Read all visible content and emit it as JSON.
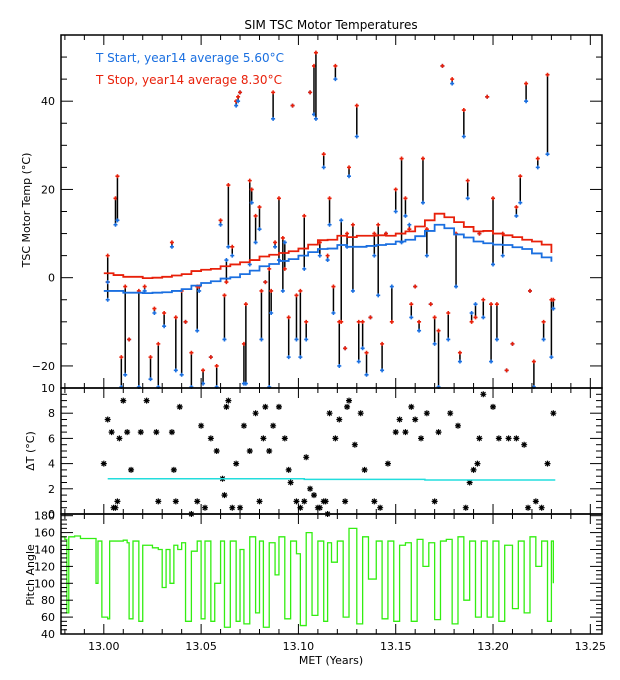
{
  "title": "SIM TSC Motor Temperatures",
  "colors": {
    "start": "#1a6fe0",
    "stop": "#e8200a",
    "span": "#000000",
    "dt_avg": "#22dddd",
    "pitch": "#33ee11",
    "axis": "#000000"
  },
  "chart_data": [
    {
      "type": "scatter",
      "title": "SIM TSC Motor Temperatures",
      "ylabel": "TSC Motor Temp (°C)",
      "xlim": [
        12.978,
        13.256
      ],
      "ylim": [
        -25,
        55
      ],
      "yticks": [
        -20,
        0,
        20,
        40
      ],
      "ytick_labels": [
        "−20",
        "0",
        "20",
        "40"
      ],
      "legend": {
        "placement": "top-left",
        "entries": [
          {
            "label": "T Start, year14 average  5.60°C",
            "series": "start"
          },
          {
            "label": "T Stop, year14 average  8.30°C",
            "series": "stop"
          }
        ]
      },
      "events": [
        [
          13.002,
          -5,
          -1
        ],
        [
          13.002,
          -1,
          5
        ],
        [
          13.006,
          12,
          18
        ],
        [
          13.007,
          13,
          23
        ],
        [
          13.009,
          -28,
          -18
        ],
        [
          13.011,
          -22,
          -2
        ],
        [
          13.013,
          -14,
          -14
        ],
        [
          13.018,
          -28,
          -3
        ],
        [
          13.021,
          -3,
          -2
        ],
        [
          13.024,
          -23,
          -18
        ],
        [
          13.026,
          -8,
          -7
        ],
        [
          13.028,
          -28,
          -15
        ],
        [
          13.031,
          -11,
          -8
        ],
        [
          13.035,
          7,
          8
        ],
        [
          13.037,
          -21,
          -9
        ],
        [
          13.04,
          -22,
          -3
        ],
        [
          13.042,
          -10,
          -10
        ],
        [
          13.045,
          -25,
          -17
        ],
        [
          13.048,
          -12,
          -2
        ],
        [
          13.049,
          -3,
          -2
        ],
        [
          13.051,
          -24,
          -21
        ],
        [
          13.055,
          -18,
          -18
        ],
        [
          13.058,
          -26,
          -20
        ],
        [
          13.06,
          12,
          13
        ],
        [
          13.062,
          -14,
          -4
        ],
        [
          13.063,
          4,
          -1
        ],
        [
          13.064,
          7,
          21
        ],
        [
          13.066,
          5,
          7
        ],
        [
          13.068,
          39,
          40
        ],
        [
          13.069,
          40,
          41
        ],
        [
          13.07,
          42,
          42
        ],
        [
          13.072,
          -24,
          -15
        ],
        [
          13.073,
          -24,
          -6
        ],
        [
          13.075,
          3,
          22
        ],
        [
          13.076,
          17,
          20
        ],
        [
          13.078,
          8,
          14
        ],
        [
          13.08,
          11,
          16
        ],
        [
          13.081,
          -14,
          -3
        ],
        [
          13.083,
          -1,
          -1
        ],
        [
          13.085,
          -25,
          2
        ],
        [
          13.086,
          -8,
          -3
        ],
        [
          13.087,
          36,
          42
        ],
        [
          13.088,
          7,
          8
        ],
        [
          13.09,
          4,
          18
        ],
        [
          13.092,
          -3,
          9
        ],
        [
          13.093,
          8,
          2
        ],
        [
          13.095,
          -18,
          -9
        ],
        [
          13.097,
          39,
          39
        ],
        [
          13.099,
          -14,
          -4
        ],
        [
          13.101,
          -18,
          -3
        ],
        [
          13.103,
          2,
          14
        ],
        [
          13.104,
          -14,
          -10
        ],
        [
          13.106,
          42,
          42
        ],
        [
          13.108,
          37,
          48
        ],
        [
          13.109,
          36,
          51
        ],
        [
          13.111,
          5,
          8
        ],
        [
          13.113,
          25,
          28
        ],
        [
          13.115,
          4,
          5
        ],
        [
          13.116,
          12,
          18
        ],
        [
          13.118,
          -8,
          -2
        ],
        [
          13.119,
          45,
          48
        ],
        [
          13.121,
          -20,
          -10
        ],
        [
          13.122,
          13,
          -10
        ],
        [
          13.124,
          -16,
          -16
        ],
        [
          13.125,
          7,
          10
        ],
        [
          13.126,
          23,
          25
        ],
        [
          13.128,
          -3,
          12
        ],
        [
          13.13,
          32,
          39
        ],
        [
          13.131,
          -19,
          -10
        ],
        [
          13.133,
          -16,
          -10
        ],
        [
          13.135,
          -22,
          -17
        ],
        [
          13.137,
          -9,
          -9
        ],
        [
          13.139,
          5,
          10
        ],
        [
          13.141,
          -4,
          12
        ],
        [
          13.143,
          -21,
          -15
        ],
        [
          13.145,
          10,
          10
        ],
        [
          13.148,
          -2,
          -10
        ],
        [
          13.15,
          15,
          20
        ],
        [
          13.153,
          8,
          27
        ],
        [
          13.155,
          14,
          18
        ],
        [
          13.157,
          12,
          11
        ],
        [
          13.158,
          -9,
          -6
        ],
        [
          13.16,
          -2,
          -2
        ],
        [
          13.162,
          -12,
          -10
        ],
        [
          13.164,
          17,
          27
        ],
        [
          13.166,
          5,
          11
        ],
        [
          13.168,
          -6,
          -6
        ],
        [
          13.17,
          -15,
          -9
        ],
        [
          13.172,
          -27,
          -12
        ],
        [
          13.174,
          48,
          48
        ],
        [
          13.177,
          -14,
          -8
        ],
        [
          13.179,
          44,
          45
        ],
        [
          13.181,
          -2,
          10
        ],
        [
          13.183,
          -19,
          -17
        ],
        [
          13.185,
          32,
          38
        ],
        [
          13.187,
          18,
          22
        ],
        [
          13.189,
          -8,
          -10
        ],
        [
          13.191,
          -6,
          -9
        ],
        [
          13.193,
          10,
          10
        ],
        [
          13.195,
          -9,
          -5
        ],
        [
          13.197,
          41,
          41
        ],
        [
          13.199,
          -19,
          -6
        ],
        [
          13.2,
          3,
          18
        ],
        [
          13.202,
          -14,
          -6
        ],
        [
          13.205,
          5,
          10
        ],
        [
          13.207,
          -21,
          -21
        ],
        [
          13.21,
          -15,
          -15
        ],
        [
          13.212,
          14,
          16
        ],
        [
          13.214,
          17,
          23
        ],
        [
          13.217,
          40,
          44
        ],
        [
          13.219,
          -3,
          -3
        ],
        [
          13.221,
          -28,
          -19
        ],
        [
          13.223,
          25,
          27
        ],
        [
          13.226,
          -14,
          -10
        ],
        [
          13.228,
          28,
          46
        ],
        [
          13.23,
          -18,
          -5
        ],
        [
          13.231,
          -7,
          -5
        ]
      ],
      "running_avg_x": [
        13.0,
        13.005,
        13.01,
        13.02,
        13.025,
        13.03,
        13.035,
        13.04,
        13.045,
        13.05,
        13.055,
        13.06,
        13.065,
        13.07,
        13.075,
        13.08,
        13.085,
        13.09,
        13.095,
        13.1,
        13.105,
        13.11,
        13.115,
        13.12,
        13.125,
        13.13,
        13.135,
        13.14,
        13.145,
        13.15,
        13.155,
        13.16,
        13.165,
        13.17,
        13.175,
        13.18,
        13.185,
        13.19,
        13.195,
        13.2,
        13.205,
        13.21,
        13.215,
        13.22,
        13.225,
        13.23
      ],
      "series": [
        {
          "name": "T Stop average",
          "values": [
            1,
            0.6,
            0.2,
            -0.1,
            0,
            0.2,
            0.5,
            0.8,
            1.5,
            1.8,
            2,
            2.6,
            3,
            3.5,
            4,
            4.8,
            5.2,
            5.6,
            6,
            6.6,
            7.5,
            8.5,
            8.6,
            9.5,
            9.2,
            9.5,
            9.5,
            9.6,
            9.5,
            10,
            10.5,
            11.6,
            13,
            14.5,
            13.7,
            12.6,
            11.5,
            10.5,
            10.6,
            10,
            9.6,
            9.2,
            8.6,
            8.2,
            7.5,
            5.6
          ]
        },
        {
          "name": "T Start average",
          "values": [
            -3,
            -3,
            -3.4,
            -3.5,
            -3.4,
            -3.3,
            -3,
            -2.6,
            -1.8,
            -1.2,
            -0.8,
            -0.2,
            0.1,
            0.8,
            1.6,
            2.6,
            3.1,
            3.8,
            4.2,
            5,
            5.8,
            6.5,
            6.6,
            7.4,
            7,
            7,
            7.2,
            7.4,
            7.6,
            8.2,
            8.6,
            9.4,
            10.6,
            12,
            11.2,
            9.8,
            9.1,
            8.2,
            7.8,
            7.5,
            7.4,
            6.9,
            6.5,
            5.5,
            4.6,
            3.6
          ]
        }
      ]
    },
    {
      "type": "scatter",
      "ylabel": "ΔT (°C)",
      "xlim": [
        12.978,
        13.256
      ],
      "ylim": [
        0,
        10
      ],
      "yticks": [
        0,
        2,
        4,
        6,
        8,
        10
      ],
      "ytick_labels": [
        "0",
        "2",
        "4",
        "6",
        "8",
        "10"
      ],
      "points_x": [
        13.0,
        13.002,
        13.004,
        13.005,
        13.006,
        13.007,
        13.008,
        13.01,
        13.012,
        13.014,
        13.019,
        13.022,
        13.027,
        13.028,
        13.035,
        13.036,
        13.037,
        13.039,
        13.045,
        13.048,
        13.05,
        13.052,
        13.055,
        13.058,
        13.061,
        13.062,
        13.063,
        13.064,
        13.066,
        13.068,
        13.07,
        13.072,
        13.075,
        13.078,
        13.08,
        13.082,
        13.083,
        13.085,
        13.087,
        13.09,
        13.093,
        13.095,
        13.096,
        13.099,
        13.101,
        13.103,
        13.104,
        13.106,
        13.108,
        13.11,
        13.111,
        13.113,
        13.114,
        13.115,
        13.116,
        13.119,
        13.121,
        13.124,
        13.125,
        13.126,
        13.129,
        13.132,
        13.134,
        13.139,
        13.142,
        13.146,
        13.15,
        13.152,
        13.155,
        13.158,
        13.16,
        13.163,
        13.166,
        13.17,
        13.172,
        13.178,
        13.182,
        13.186,
        13.188,
        13.19,
        13.192,
        13.193,
        13.195,
        13.2,
        13.203,
        13.208,
        13.212,
        13.216,
        13.218,
        13.222,
        13.225,
        13.228,
        13.231
      ],
      "points_y": [
        4,
        7.5,
        6.5,
        0.5,
        0.5,
        1,
        6,
        9,
        6.5,
        3.5,
        6.5,
        9,
        6.5,
        1,
        6.5,
        3.5,
        1,
        8.5,
        0,
        1,
        7,
        0.5,
        6,
        5,
        2.8,
        1.5,
        8.5,
        9,
        0.5,
        4,
        0.5,
        7,
        5,
        8,
        1,
        6,
        8.5,
        5,
        7,
        8.5,
        6,
        3.5,
        2.5,
        1,
        0.5,
        1,
        4.5,
        2,
        1.5,
        0.5,
        0.5,
        1,
        1,
        0,
        8,
        6,
        7.5,
        1,
        8.5,
        9,
        5.5,
        8,
        3.5,
        1,
        0.5,
        4,
        6.5,
        7.5,
        6.5,
        8.5,
        7.5,
        6,
        8,
        1,
        6.5,
        8,
        7,
        0.5,
        2.5,
        3.5,
        4,
        6,
        9.5,
        8.5,
        6,
        6,
        6,
        5.5,
        0.5,
        1,
        0.5,
        4,
        8
      ],
      "series": [
        {
          "name": "ΔT average",
          "x": [
            13.002,
            13.018,
            13.103,
            13.165,
            13.232
          ],
          "values": [
            2.8,
            2.8,
            2.75,
            2.7,
            2.7
          ]
        }
      ]
    },
    {
      "type": "line",
      "xlabel": "MET (Years)",
      "ylabel": "Pitch Angle",
      "xlim": [
        12.978,
        13.256
      ],
      "ylim": [
        40,
        182
      ],
      "yticks": [
        40,
        60,
        80,
        100,
        120,
        140,
        160,
        180
      ],
      "ytick_labels": [
        "40",
        "60",
        "80",
        "100",
        "120",
        "140",
        "160",
        "180"
      ],
      "xticks": [
        13.0,
        13.05,
        13.1,
        13.15,
        13.2,
        13.25
      ],
      "xtick_labels": [
        "13.00",
        "13.05",
        "13.10",
        "13.15",
        "13.20",
        "13.25"
      ],
      "series": [
        {
          "name": "Pitch",
          "x": [
            12.978,
            12.98,
            12.981,
            12.982,
            12.985,
            12.988,
            12.995,
            12.996,
            12.997,
            12.999,
            13.002,
            13.003,
            13.01,
            13.012,
            13.013,
            13.015,
            13.018,
            13.02,
            13.022,
            13.025,
            13.028,
            13.03,
            13.032,
            13.034,
            13.036,
            13.038,
            13.04,
            13.042,
            13.045,
            13.048,
            13.05,
            13.052,
            13.055,
            13.057,
            13.06,
            13.062,
            13.065,
            13.068,
            13.07,
            13.072,
            13.075,
            13.078,
            13.08,
            13.082,
            13.085,
            13.088,
            13.09,
            13.093,
            13.096,
            13.099,
            13.101,
            13.104,
            13.107,
            13.11,
            13.113,
            13.115,
            13.117,
            13.12,
            13.123,
            13.126,
            13.13,
            13.133,
            13.136,
            13.14,
            13.143,
            13.146,
            13.149,
            13.152,
            13.155,
            13.158,
            13.161,
            13.164,
            13.167,
            13.17,
            13.173,
            13.176,
            13.179,
            13.182,
            13.185,
            13.188,
            13.191,
            13.194,
            13.197,
            13.2,
            13.203,
            13.206,
            13.21,
            13.213,
            13.216,
            13.219,
            13.222,
            13.225,
            13.228,
            13.23,
            13.231
          ],
          "values": [
            155,
            152,
            65,
            155,
            156,
            153,
            153,
            100,
            150,
            60,
            58,
            150,
            151,
            148,
            58,
            150,
            55,
            145,
            145,
            142,
            140,
            95,
            140,
            100,
            145,
            140,
            148,
            55,
            138,
            150,
            58,
            150,
            55,
            100,
            150,
            48,
            150,
            55,
            140,
            52,
            155,
            65,
            150,
            48,
            148,
            110,
            155,
            58,
            150,
            135,
            50,
            160,
            62,
            150,
            55,
            148,
            125,
            150,
            60,
            165,
            52,
            155,
            105,
            150,
            58,
            150,
            55,
            145,
            148,
            55,
            152,
            120,
            148,
            57,
            150,
            152,
            52,
            155,
            80,
            150,
            60,
            150,
            60,
            150,
            55,
            145,
            70,
            150,
            65,
            155,
            120,
            150,
            55,
            150,
            100
          ]
        }
      ]
    }
  ]
}
